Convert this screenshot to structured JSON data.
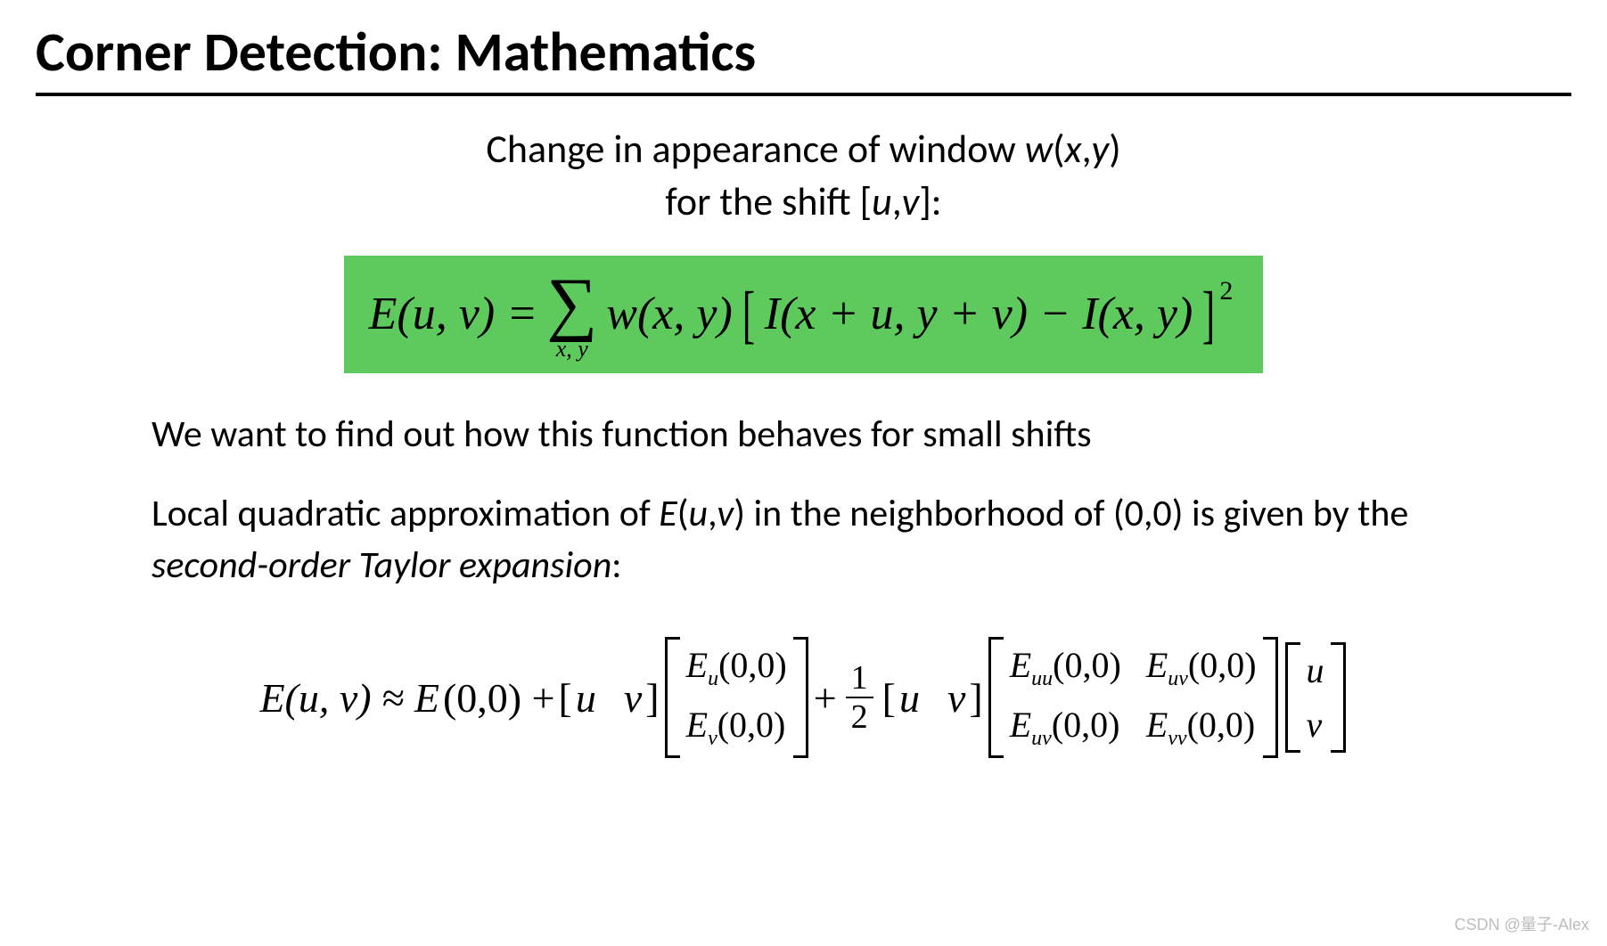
{
  "title": "Corner Detection: Mathematics",
  "intro": {
    "line1_a": "Change in appearance of window ",
    "line1_b": "w",
    "line1_c": "(",
    "line1_d": "x",
    "line1_e": ",",
    "line1_f": "y",
    "line1_g": ")",
    "line2_a": "for the shift [",
    "line2_b": "u",
    "line2_c": ",",
    "line2_d": "v",
    "line2_e": "]:"
  },
  "eq1": {
    "lhs": "E(u, v) = ",
    "sum_sub": "x, y",
    "w": "w(x, y)",
    "inner": "I(x + u, y + v) − I(x, y)",
    "exp": "2",
    "highlight_color": "#5eca5e"
  },
  "para1": "We want to find out how this function behaves for small shifts",
  "para2": {
    "a": "Local quadratic approximation of ",
    "b": "E",
    "c": "(",
    "d": "u",
    "e": ",",
    "f": "v",
    "g": ") in the neighborhood of (0,0) is given by the ",
    "h": "second-order Taylor expansion",
    "i": ":"
  },
  "eq2": {
    "lhs": "E(u, v) ≈ E",
    "zero": "(0,0) + ",
    "rowvec_open": "[",
    "rowvec_u": "u",
    "rowvec_sp": "  ",
    "rowvec_v": "v",
    "rowvec_close": "]",
    "grad": {
      "r1": "E",
      "r1sub": "u",
      "r1arg": "(0,0)",
      "r2": "E",
      "r2sub": "v",
      "r2arg": "(0,0)"
    },
    "plus": " + ",
    "frac_n": "1",
    "frac_d": "2",
    "hessian": {
      "c11": "E",
      "c11sub": "uu",
      "c11arg": "(0,0)",
      "c12": "E",
      "c12sub": "uv",
      "c12arg": "(0,0)",
      "c21": "E",
      "c21sub": "uv",
      "c21arg": "(0,0)",
      "c22": "E",
      "c22sub": "vv",
      "c22arg": "(0,0)"
    },
    "colvec": {
      "r1": "u",
      "r2": "v"
    }
  },
  "watermark": "CSDN @量子-Alex"
}
